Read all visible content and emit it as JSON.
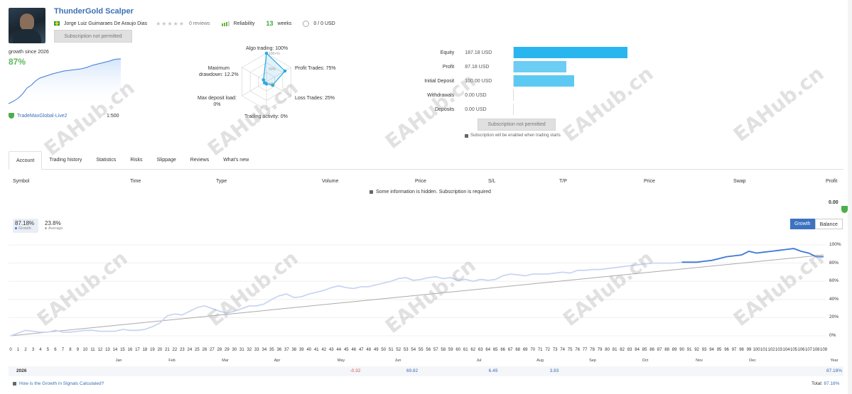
{
  "header": {
    "title": "ThunderGold Scalper",
    "author": "Jorge Luiz Guimaraes De Araujo Dias",
    "reviews": "0 reviews",
    "reliability_label": "Reliability",
    "weeks_value": "13",
    "weeks_label": "weeks",
    "cost": "0 / 0 USD",
    "subscribe_button": "Subscription not permitted"
  },
  "summary": {
    "growth_since": "growth since 2026",
    "growth_value": "87%",
    "server": "TradeMaxGlobal-Live2",
    "leverage": "1:500"
  },
  "radar": {
    "algo_trading": "Algo trading: 100%",
    "profit_trades": "Profit Trades: 75%",
    "loss_trades": "Loss Trades: 25%",
    "trading_activity": "Trading activity: 0%",
    "max_deposit_load": "Max deposit load:\n0%",
    "max_drawdown": "Maximum\ndrawdown: 12.2%",
    "scale_100": "100+%",
    "scale_50": "50%",
    "scale_0": "0%",
    "values": [
      100,
      75,
      25,
      0,
      0,
      12.2
    ]
  },
  "balance_bars": {
    "items": [
      {
        "label": "Equity",
        "value": "187.18 USD",
        "amount": 187.18,
        "color": "#29b6ef"
      },
      {
        "label": "Profit",
        "value": "87.18 USD",
        "amount": 87.18,
        "color": "#6ccdf5"
      },
      {
        "label": "Initial Deposit",
        "value": "100.00 USD",
        "amount": 100.0,
        "color": "#5cc9f2"
      },
      {
        "label": "Withdrawals",
        "value": "0.00 USD",
        "amount": 0,
        "color": "#5cc9f2"
      },
      {
        "label": "Deposits",
        "value": "0.00 USD",
        "amount": 0,
        "color": "#5cc9f2"
      }
    ],
    "subscribe_button": "Subscription not permitted",
    "note": "Subscription will be enabled when trading starts"
  },
  "tabs": [
    "Account",
    "Trading history",
    "Statistics",
    "Risks",
    "Slippage",
    "Reviews",
    "What's new"
  ],
  "table": {
    "headers": [
      "Symbol",
      "Time",
      "Type",
      "Volume",
      "Price",
      "S/L",
      "T/P",
      "Price",
      "Swap",
      "Profit"
    ],
    "hidden_note": "Some information is hidden. Subscription is required",
    "profit_total": "0.00"
  },
  "growth_chart": {
    "stat_growth_value": "87.18%",
    "stat_growth_label": "Growth",
    "stat_avg_value": "23.8%",
    "stat_avg_label": "Average",
    "toggle_growth": "Growth",
    "toggle_balance": "Balance",
    "y_ticks": [
      "100%",
      "80%",
      "60%",
      "40%",
      "20%",
      "0%"
    ],
    "months": [
      "Jan",
      "Feb",
      "Mar",
      "Apr",
      "May",
      "Jun",
      "Jul",
      "Aug",
      "Sep",
      "Oct",
      "Nov",
      "Dec",
      "Year"
    ],
    "year_label": "2026",
    "year_values": [
      {
        "month": "May",
        "value": "-0.32",
        "color": "#d9534f"
      },
      {
        "month": "Jun",
        "value": "69.82",
        "color": "#3c6fb4"
      },
      {
        "month": "Jul",
        "value": "6.49",
        "color": "#3c6fb4"
      },
      {
        "month": "Aug",
        "value": "3.83",
        "color": "#3c6fb4"
      },
      {
        "month": "Year",
        "value": "87.18%",
        "color": "#3c6fb4"
      }
    ],
    "footer_question": "How is the Growth in Signals Calculated?",
    "total_label": "Total:",
    "total_value": "87.18%"
  },
  "chart_data": {
    "type": "line",
    "x_max": 109,
    "ylim": [
      0,
      100
    ],
    "series": [
      {
        "name": "Growth",
        "color": "#3c78d8",
        "values": [
          0,
          3,
          6,
          5,
          4,
          4,
          6,
          4,
          4,
          5,
          6,
          6,
          5,
          5,
          5,
          7,
          6,
          6,
          7,
          10,
          14,
          22,
          24,
          23,
          27,
          31,
          33,
          30,
          27,
          25,
          27,
          30,
          33,
          33,
          35,
          40,
          44,
          46,
          42,
          43,
          46,
          48,
          50,
          53,
          55,
          53,
          52,
          54,
          54,
          56,
          58,
          60,
          63,
          64,
          61,
          62,
          64,
          65,
          63,
          64,
          61,
          62,
          60,
          62,
          61,
          62,
          66,
          68,
          67,
          66,
          68,
          68,
          68,
          69,
          70,
          69,
          72,
          72,
          73,
          73,
          74,
          75,
          76,
          77,
          78,
          79,
          80,
          80,
          80,
          80,
          81,
          81,
          81,
          82,
          83,
          85,
          87,
          88,
          89,
          93,
          91,
          92,
          93,
          94,
          95,
          96,
          93,
          91,
          87,
          87
        ]
      }
    ]
  },
  "watermark": "EAHub.cn"
}
